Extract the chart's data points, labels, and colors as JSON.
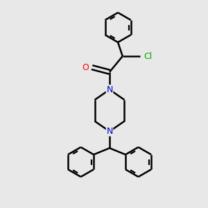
{
  "bg_color": "#e8e8e8",
  "bond_color": "#000000",
  "bond_width": 1.8,
  "atom_colors": {
    "O": "#ff0000",
    "N": "#0000cc",
    "Cl": "#00aa00",
    "C": "#000000"
  },
  "font_size": 9,
  "fig_size": [
    3.0,
    3.0
  ],
  "dpi": 100,
  "xlim": [
    -1.6,
    1.6
  ],
  "ylim": [
    -2.5,
    1.9
  ]
}
